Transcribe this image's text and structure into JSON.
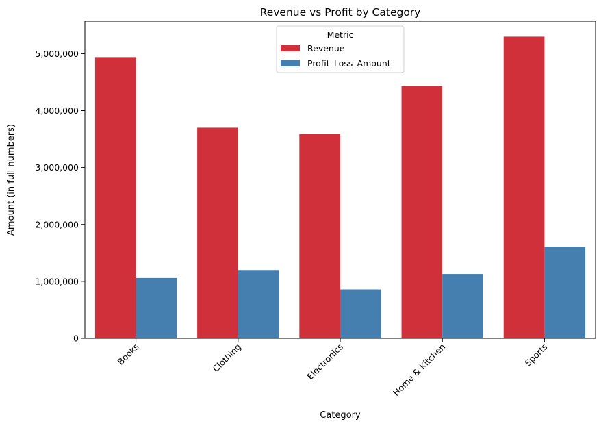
{
  "chart_data": {
    "type": "bar",
    "title": "Revenue vs Profit by Category",
    "xlabel": "Category",
    "ylabel": "Amount (in full numbers)",
    "categories": [
      "Books",
      "Clothing",
      "Electronics",
      "Home & Kitchen",
      "Sports"
    ],
    "series": [
      {
        "name": "Revenue",
        "color": "#d0303a",
        "values": [
          4940000,
          3700000,
          3590000,
          4430000,
          5300000
        ]
      },
      {
        "name": "Profit_Loss_Amount",
        "color": "#447fb0",
        "values": [
          1060000,
          1200000,
          860000,
          1130000,
          1610000
        ]
      }
    ],
    "ylim": [
      0,
      5570000
    ],
    "yticks": [
      0,
      1000000,
      2000000,
      3000000,
      4000000,
      5000000
    ],
    "ytick_labels": [
      "0",
      "1,000,000",
      "2,000,000",
      "3,000,000",
      "4,000,000",
      "5,000,000"
    ],
    "grid": false,
    "legend": {
      "title": "Metric",
      "position": "top-center",
      "entries": [
        "Revenue",
        "Profit_Loss_Amount"
      ]
    }
  }
}
